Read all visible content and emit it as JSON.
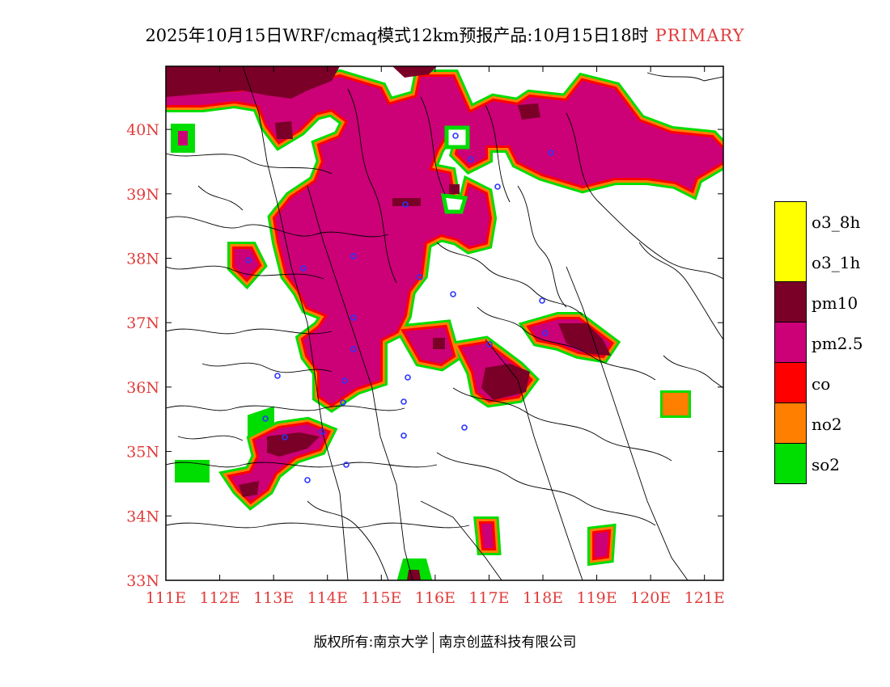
{
  "header": {
    "title": "2025年10月15日WRF/cmaq模式12km预报产品:10月15日18时",
    "tag": "PRIMARY"
  },
  "map": {
    "lon_range": [
      111,
      121.35
    ],
    "lat_range": [
      33,
      40.98
    ],
    "lon_ticks": [
      "111E",
      "112E",
      "113E",
      "114E",
      "115E",
      "116E",
      "117E",
      "118E",
      "119E",
      "120E",
      "121E"
    ],
    "lat_ticks": [
      "33N",
      "34N",
      "35N",
      "36N",
      "37N",
      "38N",
      "39N",
      "40N"
    ],
    "tick_color": "#e23b3b"
  },
  "legend": {
    "items": [
      {
        "label": "o3_8h",
        "color": "#ffff00"
      },
      {
        "label": "o3_1h",
        "color": "#ffff00"
      },
      {
        "label": "pm10",
        "color": "#7a0027"
      },
      {
        "label": "pm2.5",
        "color": "#cc0077"
      },
      {
        "label": "co",
        "color": "#ff0000"
      },
      {
        "label": "no2",
        "color": "#ff8000"
      },
      {
        "label": "so2",
        "color": "#00dd00"
      }
    ]
  },
  "footer": {
    "left": "版权所有:南京大学",
    "right": "南京创蓝科技有限公司"
  }
}
